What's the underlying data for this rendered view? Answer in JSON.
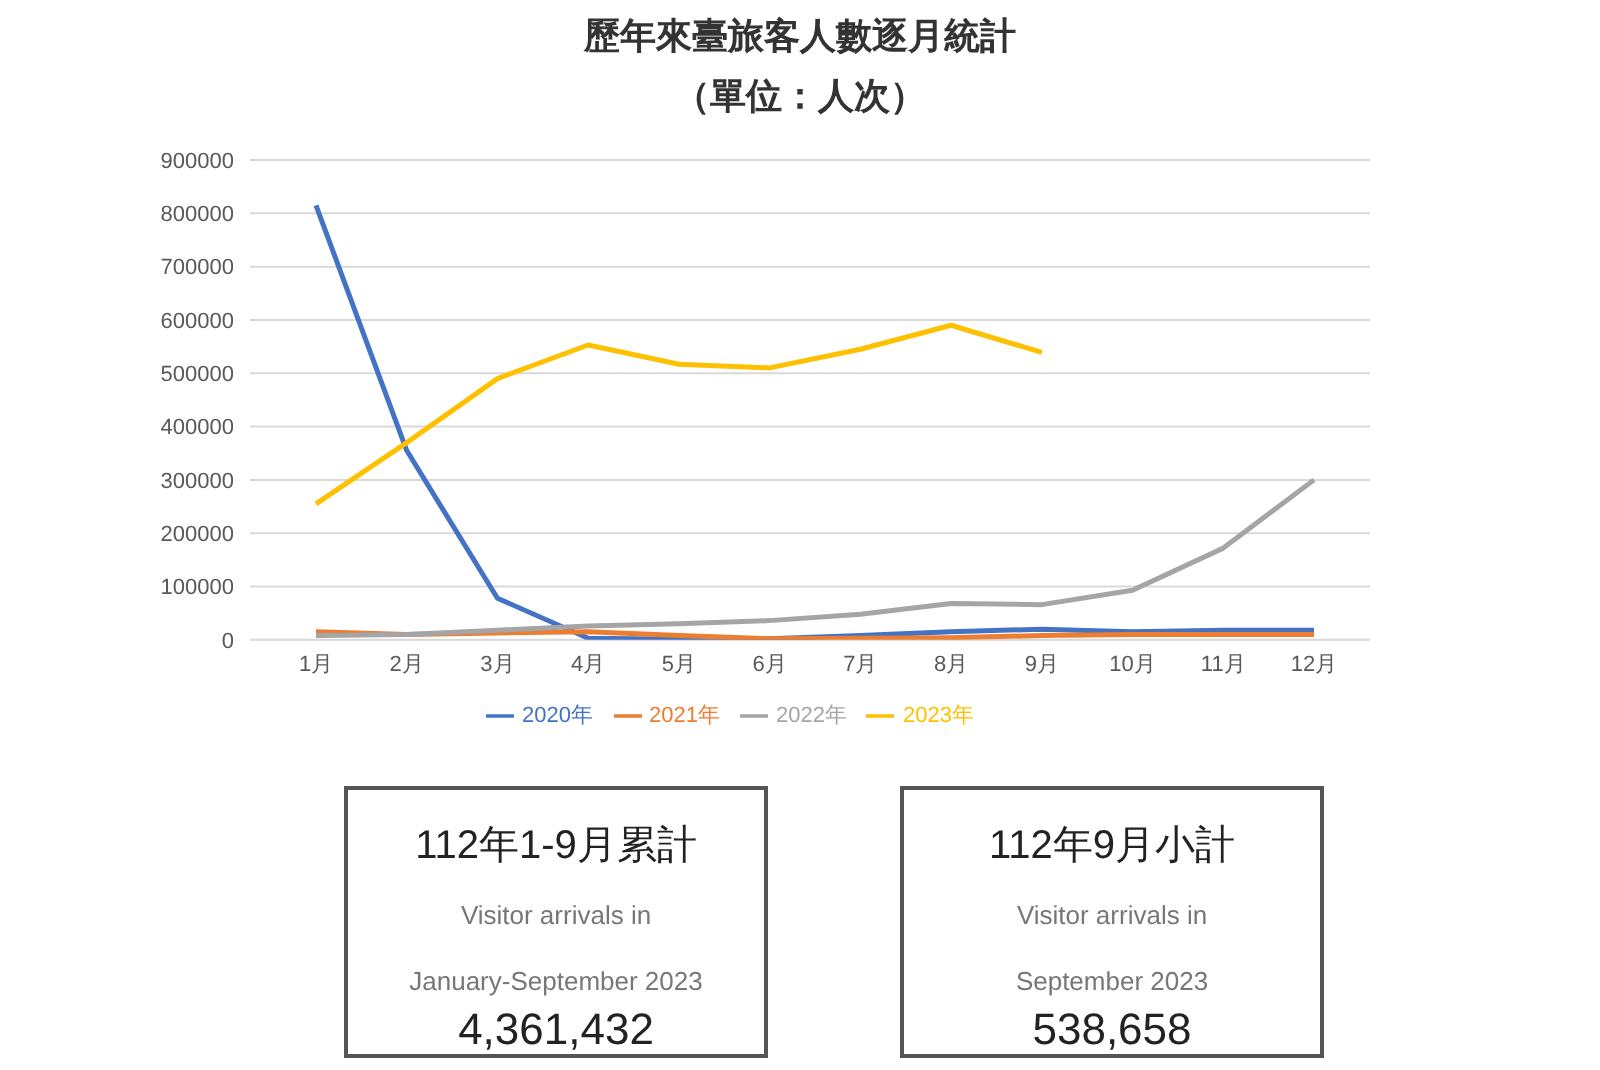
{
  "chart_data": [
    {
      "type": "line",
      "title": "歷年來臺旅客人數逐月統計",
      "subtitle": "（單位：人次）",
      "categories": [
        "1月",
        "2月",
        "3月",
        "4月",
        "5月",
        "6月",
        "7月",
        "8月",
        "9月",
        "10月",
        "11月",
        "12月"
      ],
      "series": [
        {
          "name": "2020年",
          "color": "#4472c4",
          "values": [
            815000,
            355000,
            78000,
            3000,
            1000,
            2000,
            8000,
            15000,
            20000,
            15000,
            18000,
            18000
          ]
        },
        {
          "name": "2021年",
          "color": "#ed7d31",
          "values": [
            15000,
            10000,
            13000,
            15000,
            8000,
            2000,
            3000,
            4000,
            8000,
            10000,
            10000,
            10000
          ]
        },
        {
          "name": "2022年",
          "color": "#a5a5a5",
          "values": [
            8000,
            10000,
            18000,
            26000,
            30000,
            36000,
            48000,
            68000,
            66000,
            93000,
            172000,
            300000
          ]
        },
        {
          "name": "2023年",
          "color": "#ffc000",
          "values": [
            255000,
            370000,
            490000,
            553000,
            517000,
            510000,
            545000,
            590000,
            539000,
            null,
            null,
            null
          ]
        }
      ],
      "ylim": [
        0,
        900000
      ],
      "yticks": [
        0,
        100000,
        200000,
        300000,
        400000,
        500000,
        600000,
        700000,
        800000,
        900000
      ],
      "grid": "y",
      "legend": "bottom",
      "marker": "none",
      "line_style": "solid"
    },
    {
      "type": "other",
      "title": "112年1-9月累計",
      "annotations": [
        "Visitor arrivals in",
        "January-September 2023",
        "4,361,432"
      ]
    },
    {
      "type": "other",
      "title": "112年9月小計",
      "annotations": [
        "Visitor arrivals in",
        "September 2023",
        "538,658"
      ]
    }
  ]
}
